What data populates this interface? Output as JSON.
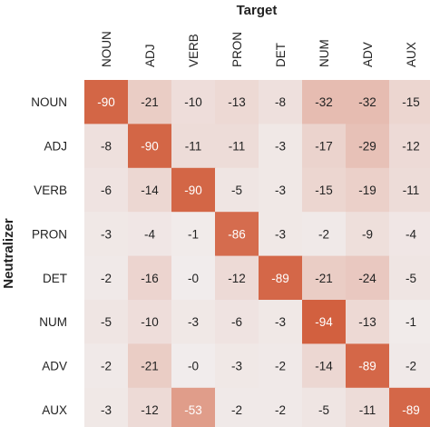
{
  "chart_data": {
    "type": "heatmap",
    "title": "Target",
    "xlabel": "Target",
    "ylabel": "Neutralizer",
    "x_categories": [
      "NOUN",
      "ADJ",
      "VERB",
      "PRON",
      "DET",
      "NUM",
      "ADV",
      "AUX"
    ],
    "y_categories": [
      "NOUN",
      "ADJ",
      "VERB",
      "PRON",
      "DET",
      "NUM",
      "ADV",
      "AUX"
    ],
    "values": [
      [
        -90,
        -21,
        -10,
        -13,
        -8,
        -32,
        -32,
        -15
      ],
      [
        -8,
        -90,
        -11,
        -11,
        -3,
        -17,
        -29,
        -12
      ],
      [
        -6,
        -14,
        -90,
        -5,
        -3,
        -15,
        -19,
        -11
      ],
      [
        -3,
        -4,
        -1,
        -86,
        -3,
        -2,
        -9,
        -4
      ],
      [
        -2,
        -16,
        0,
        -12,
        -89,
        -21,
        -24,
        -5
      ],
      [
        -5,
        -10,
        -3,
        -6,
        -3,
        -94,
        -13,
        -1
      ],
      [
        -2,
        -21,
        0,
        -3,
        -2,
        -14,
        -89,
        -2
      ],
      [
        -3,
        -12,
        -53,
        -2,
        -2,
        -5,
        -11,
        -89
      ]
    ],
    "value_labels": [
      [
        "-90",
        "-21",
        "-10",
        "-13",
        "-8",
        "-32",
        "-32",
        "-15"
      ],
      [
        "-8",
        "-90",
        "-11",
        "-11",
        "-3",
        "-17",
        "-29",
        "-12"
      ],
      [
        "-6",
        "-14",
        "-90",
        "-5",
        "-3",
        "-15",
        "-19",
        "-11"
      ],
      [
        "-3",
        "-4",
        "-1",
        "-86",
        "-3",
        "-2",
        "-9",
        "-4"
      ],
      [
        "-2",
        "-16",
        "-0",
        "-12",
        "-89",
        "-21",
        "-24",
        "-5"
      ],
      [
        "-5",
        "-10",
        "-3",
        "-6",
        "-3",
        "-94",
        "-13",
        "-1"
      ],
      [
        "-2",
        "-21",
        "-0",
        "-3",
        "-2",
        "-14",
        "-89",
        "-2"
      ],
      [
        "-3",
        "-12",
        "-53",
        "-2",
        "-2",
        "-5",
        "-11",
        "-89"
      ]
    ],
    "color_range": [
      -94,
      0
    ],
    "colors": {
      "max_color": "#D2603F",
      "min_color": "#F1ECEC",
      "light_text": "#ffffff",
      "dark_text": "#222222"
    },
    "grid": false
  }
}
